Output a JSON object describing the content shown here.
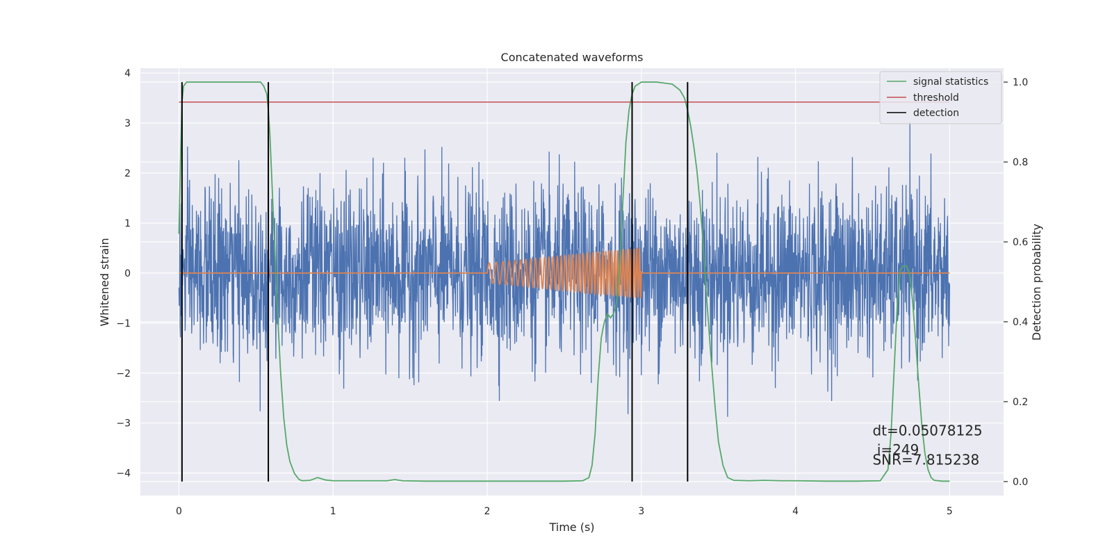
{
  "chart_data": {
    "type": "line",
    "title": "Concatenated waveforms",
    "xlabel": "Time (s)",
    "ylabel": "Whitened strain",
    "ylabel_right": "Detection probability",
    "xlim": [
      -0.25,
      5.35
    ],
    "ylim": [
      -4.45,
      4.1
    ],
    "ylim_right": [
      -0.035,
      1.035
    ],
    "x_ticks": [
      0,
      1,
      2,
      3,
      4,
      5
    ],
    "y_ticks": [
      -4,
      -3,
      -2,
      -1,
      0,
      1,
      2,
      3,
      4
    ],
    "y_right_ticks": [
      0.0,
      0.2,
      0.4,
      0.6,
      0.8,
      1.0
    ],
    "x_tick_labels": [
      "0",
      "1",
      "2",
      "3",
      "4",
      "5"
    ],
    "y_tick_labels": [
      "−4",
      "−3",
      "−2",
      "−1",
      "0",
      "1",
      "2",
      "3",
      "4"
    ],
    "y_right_tick_labels": [
      "0.0",
      "0.2",
      "0.4",
      "0.6",
      "0.8",
      "1.0"
    ],
    "grid": true,
    "legend_position": "top-right",
    "noise": {
      "x_range": [
        0,
        5
      ],
      "sigma": 0.85,
      "ylim": [
        -4.05,
        3.7
      ],
      "color": "#4c72b0"
    },
    "injected_signal": {
      "t_start": 2.0,
      "t_end": 3.0,
      "amp_start": 0.2,
      "amp_end": 0.5,
      "f_start": 20,
      "f_end": 60,
      "color": "#dd8452"
    },
    "series": [
      {
        "name": "signal statistics",
        "axis": "right",
        "color": "#55a868",
        "x": [
          0.0,
          0.01,
          0.02,
          0.03,
          0.05,
          0.1,
          0.2,
          0.3,
          0.4,
          0.5,
          0.53,
          0.55,
          0.57,
          0.58,
          0.59,
          0.6,
          0.62,
          0.64,
          0.66,
          0.68,
          0.7,
          0.72,
          0.75,
          0.78,
          0.8,
          0.85,
          0.9,
          0.95,
          1.0,
          1.2,
          1.35,
          1.4,
          1.45,
          1.6,
          2.0,
          2.5,
          2.62,
          2.66,
          2.68,
          2.7,
          2.72,
          2.74,
          2.76,
          2.78,
          2.8,
          2.82,
          2.84,
          2.86,
          2.88,
          2.9,
          2.92,
          2.94,
          2.96,
          3.0,
          3.05,
          3.1,
          3.2,
          3.25,
          3.28,
          3.3,
          3.32,
          3.34,
          3.36,
          3.38,
          3.4,
          3.42,
          3.45,
          3.48,
          3.5,
          3.53,
          3.56,
          3.6,
          3.7,
          3.8,
          3.9,
          4.0,
          4.2,
          4.4,
          4.55,
          4.6,
          4.62,
          4.64,
          4.66,
          4.68,
          4.7,
          4.72,
          4.74,
          4.76,
          4.78,
          4.8,
          4.82,
          4.84,
          4.86,
          4.88,
          4.9,
          4.95,
          5.0
        ],
        "values": [
          0.62,
          0.8,
          0.95,
          0.99,
          1.0,
          1.0,
          1.0,
          1.0,
          1.0,
          1.0,
          1.0,
          0.99,
          0.97,
          0.93,
          0.87,
          0.78,
          0.6,
          0.42,
          0.27,
          0.16,
          0.09,
          0.05,
          0.02,
          0.005,
          0.002,
          0.003,
          0.01,
          0.004,
          0.002,
          0.002,
          0.002,
          0.005,
          0.002,
          0.001,
          0.001,
          0.001,
          0.002,
          0.01,
          0.04,
          0.12,
          0.26,
          0.36,
          0.4,
          0.42,
          0.41,
          0.42,
          0.45,
          0.55,
          0.7,
          0.85,
          0.93,
          0.97,
          0.99,
          1.0,
          1.0,
          1.0,
          0.995,
          0.98,
          0.96,
          0.93,
          0.89,
          0.84,
          0.78,
          0.7,
          0.6,
          0.48,
          0.32,
          0.18,
          0.1,
          0.04,
          0.01,
          0.003,
          0.002,
          0.003,
          0.002,
          0.002,
          0.001,
          0.001,
          0.002,
          0.03,
          0.12,
          0.28,
          0.44,
          0.53,
          0.54,
          0.54,
          0.52,
          0.45,
          0.35,
          0.24,
          0.14,
          0.07,
          0.03,
          0.01,
          0.003,
          0.001,
          0.001
        ]
      },
      {
        "name": "threshold",
        "axis": "right",
        "color": "#c44e52",
        "x": [
          0,
          5
        ],
        "values": [
          0.95,
          0.95
        ]
      },
      {
        "name": "detection",
        "axis": "right",
        "color": "#000000",
        "x_positions": [
          0.02,
          0.58,
          2.94,
          3.3
        ],
        "span": [
          0.0,
          1.0
        ]
      }
    ],
    "annotations": [
      {
        "text": "dt=0.05078125",
        "x": 4.5,
        "y": -3.25
      },
      {
        "text": " i=249",
        "x": 4.5,
        "y": -3.63
      },
      {
        "text": "SNR=7.815238",
        "x": 4.5,
        "y": -3.83
      }
    ],
    "colors": {
      "plot_background": "#eaeaf2",
      "grid": "#ffffff",
      "text": "#262626"
    }
  }
}
